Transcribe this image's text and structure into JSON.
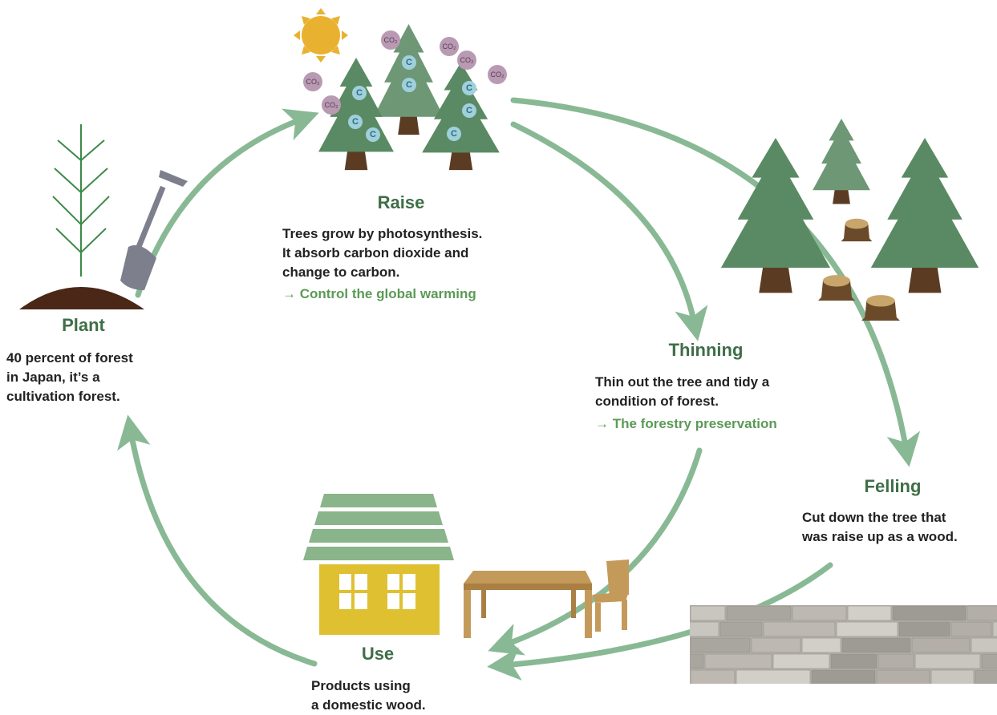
{
  "stages": [
    {
      "title": "Raise",
      "lines": [
        "Trees grow by photosynthesis.",
        "It absorb carbon dioxide and",
        "change to carbon."
      ],
      "note": "→  Control the global warming"
    },
    {
      "title": "Plant",
      "lines": [
        "40 percent of forest",
        "in Japan, it’s a",
        "cultivation forest."
      ]
    },
    {
      "title": "Thinning",
      "lines": [
        "Thin out the tree and tidy a",
        "condition of forest."
      ],
      "note": "→  The forestry preservation"
    },
    {
      "title": "Felling",
      "lines": [
        "Cut down the tree that",
        "was raise up as a wood."
      ]
    },
    {
      "title": "Use",
      "lines": [
        "Products using",
        "a domestic wood."
      ]
    }
  ],
  "icon_labels": {
    "carbon": "C",
    "co2": "CO₂"
  }
}
